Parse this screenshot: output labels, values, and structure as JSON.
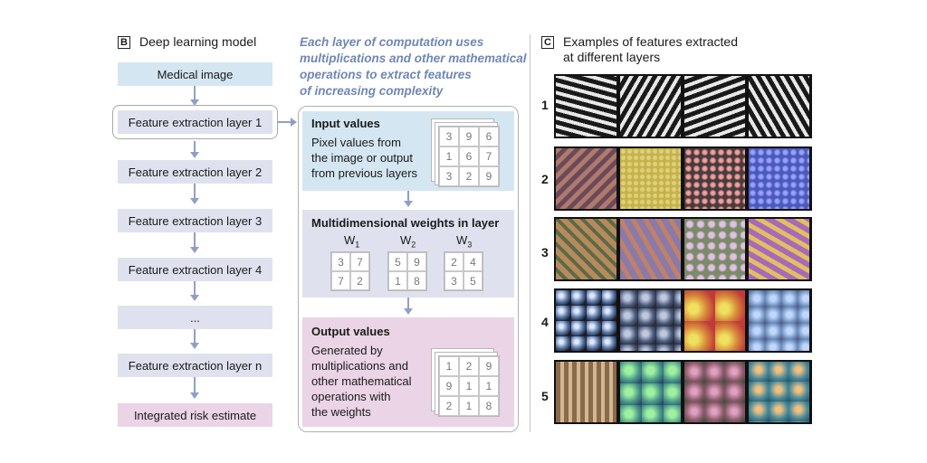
{
  "panelB": {
    "letter": "B",
    "title": "Deep learning model",
    "boxes": [
      "Medical image",
      "Feature extraction layer 1",
      "Feature extraction layer 2",
      "Feature extraction layer 3",
      "Feature extraction layer 4",
      "...",
      "Feature extraction layer n",
      "Integrated risk estimate"
    ]
  },
  "detail": {
    "heading": [
      "Each layer of computation uses",
      "multiplications and other mathematical",
      "operations to extract features",
      "of increasing complexity"
    ],
    "input": {
      "title": "Input values",
      "text": [
        "Pixel values from",
        "the image or output",
        "from previous layers"
      ],
      "grid": [
        "3",
        "9",
        "6",
        "1",
        "6",
        "7",
        "3",
        "2",
        "9"
      ]
    },
    "weights": {
      "title": "Multidimensional weights in layer",
      "items": [
        {
          "label": "W",
          "sub": "1",
          "grid": [
            "3",
            "7",
            "7",
            "2"
          ]
        },
        {
          "label": "W",
          "sub": "2",
          "grid": [
            "5",
            "9",
            "1",
            "8"
          ]
        },
        {
          "label": "W",
          "sub": "3",
          "grid": [
            "2",
            "4",
            "3",
            "5"
          ]
        }
      ]
    },
    "output": {
      "title": "Output values",
      "text": [
        "Generated by",
        "multiplications and",
        "other mathematical",
        "operations with",
        "the weights"
      ],
      "grid": [
        "1",
        "2",
        "9",
        "9",
        "1",
        "1",
        "2",
        "1",
        "8"
      ]
    }
  },
  "panelC": {
    "letter": "C",
    "title": [
      "Examples of features extracted",
      "at different layers"
    ],
    "rows": [
      "1",
      "2",
      "3",
      "4",
      "5"
    ],
    "colors": {
      "row1": [
        "#e8e8e8",
        "#1a1a1a"
      ],
      "row2": [
        "#b07a6a",
        "#c4b24a",
        "#b85a6a",
        "#4a5ab8"
      ],
      "row3": [
        "#b88a5a",
        "#8a7aa8",
        "#7a8a6a",
        "#a86ab8"
      ],
      "row4": [
        "#5a7aa8",
        "#4a5a7a",
        "#d88a3a",
        "#6a8ab8"
      ],
      "row5": [
        "#8a6a4a",
        "#4a9a8a",
        "#8a5a6a",
        "#4a8a9a"
      ]
    }
  }
}
